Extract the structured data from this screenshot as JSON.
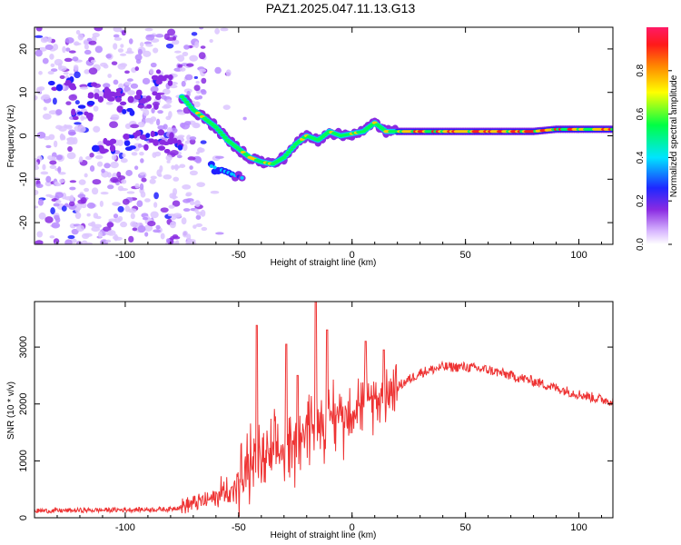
{
  "title": "PAZ1.2025.047.11.13.G13",
  "chart_data": [
    {
      "type": "heatmap",
      "xlabel": "Height of straight line (km)",
      "ylabel": "Frequency (Hz)",
      "xlim": [
        -140,
        115
      ],
      "ylim": [
        -25,
        25
      ],
      "xticks": [
        -100,
        -50,
        0,
        50,
        100
      ],
      "yticks": [
        -20,
        -10,
        0,
        10,
        20
      ],
      "colorbar": {
        "label": "Normalized spectral amplitude",
        "range": [
          0.0,
          1.0
        ],
        "ticks": [
          "0.0",
          "0.2",
          "0.4",
          "0.6",
          "0.8"
        ],
        "colormap": "rainbow (light purple to pink)"
      },
      "ridge": {
        "x": [
          -75,
          -70,
          -65,
          -60,
          -55,
          -50,
          -45,
          -40,
          -35,
          -30,
          -25,
          -20,
          -15,
          -10,
          -5,
          0,
          5,
          10,
          15,
          20,
          30,
          40,
          50,
          60,
          70,
          80,
          90,
          100,
          110
        ],
        "y": [
          9,
          6,
          4,
          2,
          -1,
          -3,
          -5,
          -6,
          -6.5,
          -5,
          -2,
          0,
          -1,
          1,
          0,
          0.5,
          1,
          3,
          1,
          1,
          1,
          1,
          1,
          1,
          1,
          1,
          1.5,
          1.5,
          1.5
        ]
      }
    },
    {
      "type": "line",
      "xlabel": "Height of straight line (km)",
      "ylabel": "SNR (10 * v/v)",
      "xlim": [
        -140,
        115
      ],
      "ylim": [
        0,
        3800
      ],
      "xticks": [
        -100,
        -50,
        0,
        50,
        100
      ],
      "yticks": [
        0,
        1000,
        2000,
        3000
      ],
      "color": "#ee3333",
      "trend": {
        "x": [
          -140,
          -120,
          -100,
          -80,
          -70,
          -60,
          -50,
          -45,
          -40,
          -35,
          -30,
          -25,
          -20,
          -15,
          -10,
          -5,
          0,
          10,
          20,
          30,
          40,
          50,
          60,
          70,
          80,
          90,
          100,
          110,
          115
        ],
        "y": [
          120,
          130,
          140,
          150,
          250,
          350,
          600,
          900,
          1000,
          1050,
          1200,
          1300,
          1600,
          1750,
          1800,
          1800,
          1950,
          2100,
          2300,
          2550,
          2650,
          2650,
          2600,
          2500,
          2400,
          2280,
          2170,
          2080,
          2050
        ]
      },
      "spikes": [
        {
          "x": -42,
          "y": 3380
        },
        {
          "x": -29,
          "y": 3050
        },
        {
          "x": -24,
          "y": 2500
        },
        {
          "x": -16,
          "y": 3800
        },
        {
          "x": -11,
          "y": 3300
        },
        {
          "x": 6,
          "y": 3100
        },
        {
          "x": 14,
          "y": 2950
        }
      ]
    }
  ]
}
